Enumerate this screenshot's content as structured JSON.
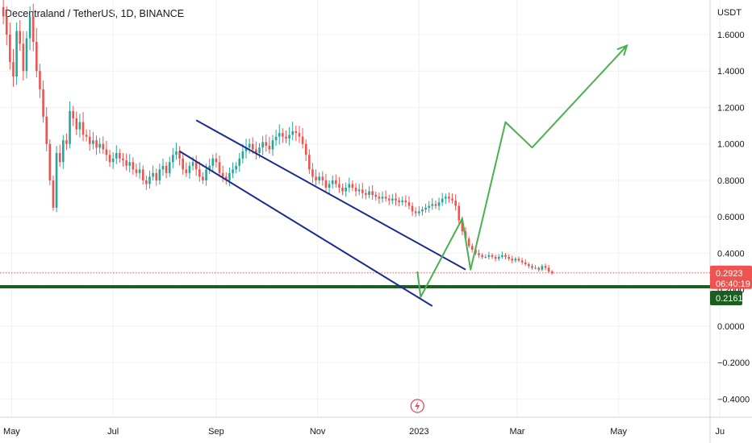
{
  "title": "Decentraland / TetherUS, 1D, BINANCE",
  "colors": {
    "up": "#26a69a",
    "down": "#ef5350",
    "channel": "#1a2d8f",
    "projection": "#4caf50",
    "support": "#1b5e20",
    "grid": "#eef0f3",
    "price_tag": "#ef5350",
    "support_tag": "#1b5e20",
    "event_icon": "#e84a5f"
  },
  "event_icon": "flash-icon",
  "chart_data": {
    "type": "candlestick",
    "y_axis_label": "USDT",
    "ylim": [
      -0.5,
      1.79
    ],
    "y_ticks": [
      1.6,
      1.4,
      1.2,
      1.0,
      0.8,
      0.6,
      0.4,
      0.2,
      0.0,
      -0.2,
      -0.4
    ],
    "y_tick_labels": [
      "1.6000",
      "1.4000",
      "1.2000",
      "1.0000",
      "0.8000",
      "0.6000",
      "0.4000",
      "0.2000",
      "0.0000",
      "−0.2000",
      "−0.4000"
    ],
    "x_range": [
      "2022-04-24",
      "2023-06-25"
    ],
    "x_ticks": [
      {
        "date": "2022-05-01",
        "label": "May"
      },
      {
        "date": "2022-07-01",
        "label": "Jul"
      },
      {
        "date": "2022-09-01",
        "label": "Sep"
      },
      {
        "date": "2022-11-01",
        "label": "Nov"
      },
      {
        "date": "2023-01-01",
        "label": "2023"
      },
      {
        "date": "2023-03-01",
        "label": "Mar"
      },
      {
        "date": "2023-05-01",
        "label": "May"
      },
      {
        "date": "2023-07-01",
        "label": "Ju"
      }
    ],
    "grid": true,
    "candle_series": {
      "start_date": "2022-04-26",
      "closes": [
        1.7,
        1.6,
        1.45,
        1.37,
        1.62,
        1.55,
        1.4,
        1.58,
        1.7,
        1.56,
        1.4,
        1.3,
        1.15,
        1.0,
        0.8,
        0.65,
        0.95,
        0.9,
        1.02,
        1.0,
        1.18,
        1.14,
        1.08,
        1.12,
        1.05,
        1.04,
        1.0,
        1.02,
        0.98,
        1.0,
        0.97,
        0.94,
        0.9,
        0.92,
        0.95,
        0.92,
        0.91,
        0.88,
        0.9,
        0.86,
        0.84,
        0.86,
        0.8,
        0.78,
        0.82,
        0.84,
        0.8,
        0.86,
        0.88,
        0.84,
        0.9,
        0.94,
        0.96,
        0.92,
        0.86,
        0.84,
        0.88,
        0.9,
        0.86,
        0.82,
        0.8,
        0.86,
        0.88,
        0.92,
        0.9,
        0.84,
        0.82,
        0.8,
        0.84,
        0.86,
        0.88,
        0.92,
        0.96,
        0.98,
        1.0,
        0.97,
        0.95,
        0.98,
        1.01,
        0.99,
        0.97,
        1.02,
        1.04,
        1.06,
        1.04,
        1.03,
        1.05,
        1.07,
        1.06,
        1.04,
        1.0,
        0.94,
        0.86,
        0.82,
        0.8,
        0.82,
        0.8,
        0.76,
        0.78,
        0.8,
        0.78,
        0.76,
        0.74,
        0.76,
        0.78,
        0.76,
        0.74,
        0.75,
        0.73,
        0.72,
        0.74,
        0.72,
        0.71,
        0.7,
        0.71,
        0.7,
        0.69,
        0.7,
        0.69,
        0.68,
        0.69,
        0.68,
        0.66,
        0.63,
        0.62,
        0.63,
        0.64,
        0.65,
        0.66,
        0.67,
        0.66,
        0.68,
        0.7,
        0.71,
        0.7,
        0.69,
        0.66,
        0.58,
        0.52,
        0.48,
        0.44,
        0.42,
        0.4,
        0.39,
        0.38,
        0.38,
        0.39,
        0.38,
        0.37,
        0.38,
        0.39,
        0.38,
        0.37,
        0.36,
        0.37,
        0.36,
        0.35,
        0.34,
        0.33,
        0.32,
        0.32,
        0.31,
        0.33,
        0.32,
        0.3,
        0.29
      ],
      "last_close": 0.2923
    },
    "channel": {
      "upper": [
        {
          "date": "2022-08-20",
          "y": 1.13
        },
        {
          "date": "2023-01-29",
          "y": 0.31
        }
      ],
      "lower": [
        {
          "date": "2022-08-10",
          "y": 0.96
        },
        {
          "date": "2023-01-09",
          "y": 0.11
        }
      ]
    },
    "projection_path": [
      {
        "date": "2022-12-31",
        "y": 0.3
      },
      {
        "date": "2023-01-02",
        "y": 0.16
      },
      {
        "date": "2023-01-27",
        "y": 0.59
      },
      {
        "date": "2023-02-01",
        "y": 0.31
      },
      {
        "date": "2023-02-22",
        "y": 1.12
      },
      {
        "date": "2023-03-10",
        "y": 0.98
      },
      {
        "date": "2023-05-06",
        "y": 1.54
      }
    ],
    "support_level": 0.2161,
    "current_price": {
      "value": "0.2923",
      "countdown": "06:40:19"
    },
    "support_label": "0.2161",
    "event_date": "2022-12-31"
  }
}
